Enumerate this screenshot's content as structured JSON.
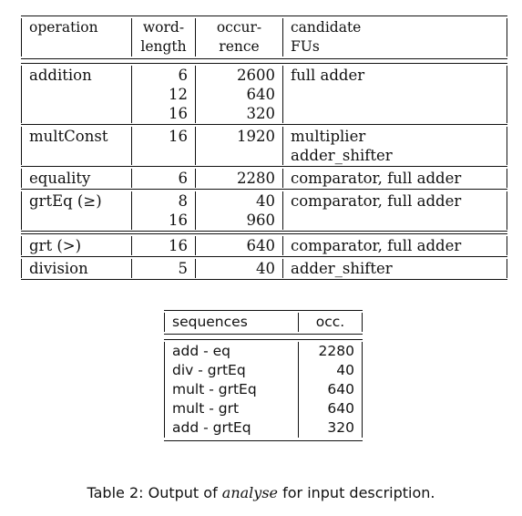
{
  "main_table": {
    "headers": {
      "operation": "operation",
      "wordlength": [
        "word-",
        "length"
      ],
      "occurrence": [
        "occur-",
        "rence"
      ],
      "candidate": [
        "candidate",
        "FUs"
      ]
    },
    "rows": [
      {
        "operation": "addition",
        "lines": [
          {
            "wordlength": "6",
            "occurrence": "2600",
            "candidate": "full adder"
          },
          {
            "wordlength": "12",
            "occurrence": "640",
            "candidate": ""
          },
          {
            "wordlength": "16",
            "occurrence": "320",
            "candidate": ""
          }
        ]
      },
      {
        "operation": "multConst",
        "lines": [
          {
            "wordlength": "16",
            "occurrence": "1920",
            "candidate": "multiplier"
          },
          {
            "wordlength": "",
            "occurrence": "",
            "candidate": "adder_shifter"
          }
        ]
      },
      {
        "operation": "equality",
        "lines": [
          {
            "wordlength": "6",
            "occurrence": "2280",
            "candidate": "comparator, full adder"
          }
        ]
      },
      {
        "operation": "grtEq (≥)",
        "lines": [
          {
            "wordlength": "8",
            "occurrence": "40",
            "candidate": "comparator, full adder"
          },
          {
            "wordlength": "16",
            "occurrence": "960",
            "candidate": ""
          }
        ]
      },
      {
        "operation": "grt (>)",
        "lines": [
          {
            "wordlength": "16",
            "occurrence": "640",
            "candidate": "comparator, full adder"
          }
        ]
      },
      {
        "operation": "division",
        "lines": [
          {
            "wordlength": "5",
            "occurrence": "40",
            "candidate": "adder_shifter"
          }
        ]
      }
    ]
  },
  "sequences_table": {
    "headers": {
      "sequences": "sequences",
      "occ": "occ."
    },
    "rows": [
      {
        "sequence": "add - eq",
        "occ": "2280"
      },
      {
        "sequence": "div - grtEq",
        "occ": "40"
      },
      {
        "sequence": "mult - grtEq",
        "occ": "640"
      },
      {
        "sequence": "mult - grt",
        "occ": "640"
      },
      {
        "sequence": "add - grtEq",
        "occ": "320"
      }
    ]
  },
  "caption": {
    "prefix": "Table 2: Output of ",
    "emphasis": "analyse",
    "suffix": " for input description."
  }
}
